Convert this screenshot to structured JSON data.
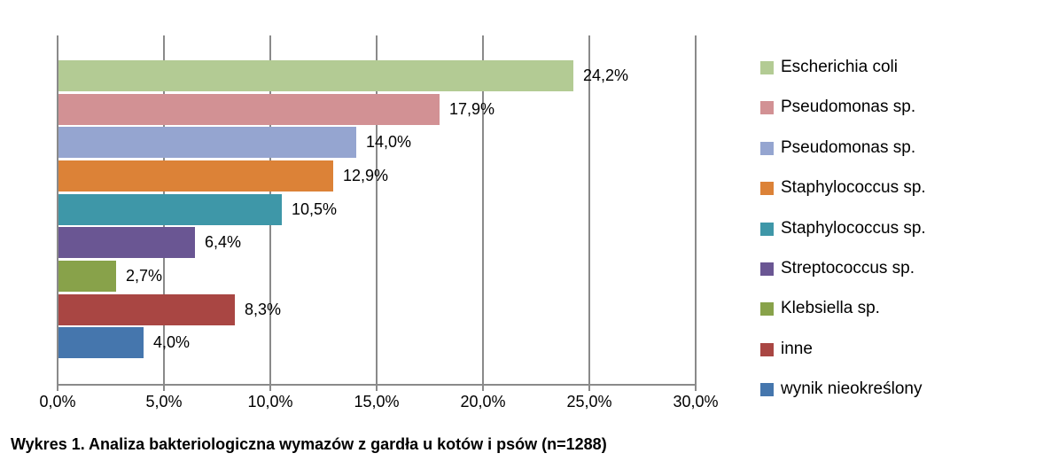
{
  "caption": "Wykres 1. Analiza bakteriologiczna wymazów z gardła u kotów i psów (n=1288)",
  "chart_data": {
    "type": "bar",
    "orientation": "horizontal",
    "title": "",
    "xlabel": "",
    "ylabel": "",
    "categories": [
      "Escherichia coli",
      "Pseudomonas sp.",
      "Pseudomonas sp.",
      "Staphylococcus sp.",
      "Staphylococcus sp.",
      "Streptococcus sp.",
      "Klebsiella sp.",
      "inne",
      "wynik nieokreślony"
    ],
    "values": [
      24.2,
      17.9,
      14.0,
      12.9,
      10.5,
      6.4,
      2.7,
      8.3,
      4.0
    ],
    "data_labels": [
      "24,2%",
      "17,9%",
      "14,0%",
      "12,9%",
      "10,5%",
      "6,4%",
      "2,7%",
      "8,3%",
      "4,0%"
    ],
    "colors": [
      "#b3cb94",
      "#d29194",
      "#95a5d0",
      "#dc8237",
      "#3e97a8",
      "#6a5693",
      "#88a24a",
      "#a94643",
      "#4576ad"
    ],
    "xlim": [
      0,
      30
    ],
    "x_tick_labels": [
      "0,0%",
      "5,0%",
      "10,0%",
      "15,0%",
      "20,0%",
      "25,0%",
      "30,0%"
    ],
    "x_tick_values": [
      0,
      5,
      10,
      15,
      20,
      25,
      30
    ],
    "grid": "vertical-only",
    "gridline_color": "#8a8a8a",
    "axis_color": "#8a8a8a",
    "legend_position": "right",
    "legend_items": [
      {
        "label": "Escherichia coli",
        "color": "#b3cb94"
      },
      {
        "label": "Pseudomonas sp.",
        "color": "#d29194"
      },
      {
        "label": "Pseudomonas sp.",
        "color": "#95a5d0"
      },
      {
        "label": "Staphylococcus sp.",
        "color": "#dc8237"
      },
      {
        "label": "Staphylococcus sp.",
        "color": "#3e97a8"
      },
      {
        "label": "Streptococcus sp.",
        "color": "#6a5693"
      },
      {
        "label": "Klebsiella sp.",
        "color": "#88a24a"
      },
      {
        "label": "inne",
        "color": "#a94643"
      },
      {
        "label": "wynik nieokreślony",
        "color": "#4576ad"
      }
    ]
  }
}
